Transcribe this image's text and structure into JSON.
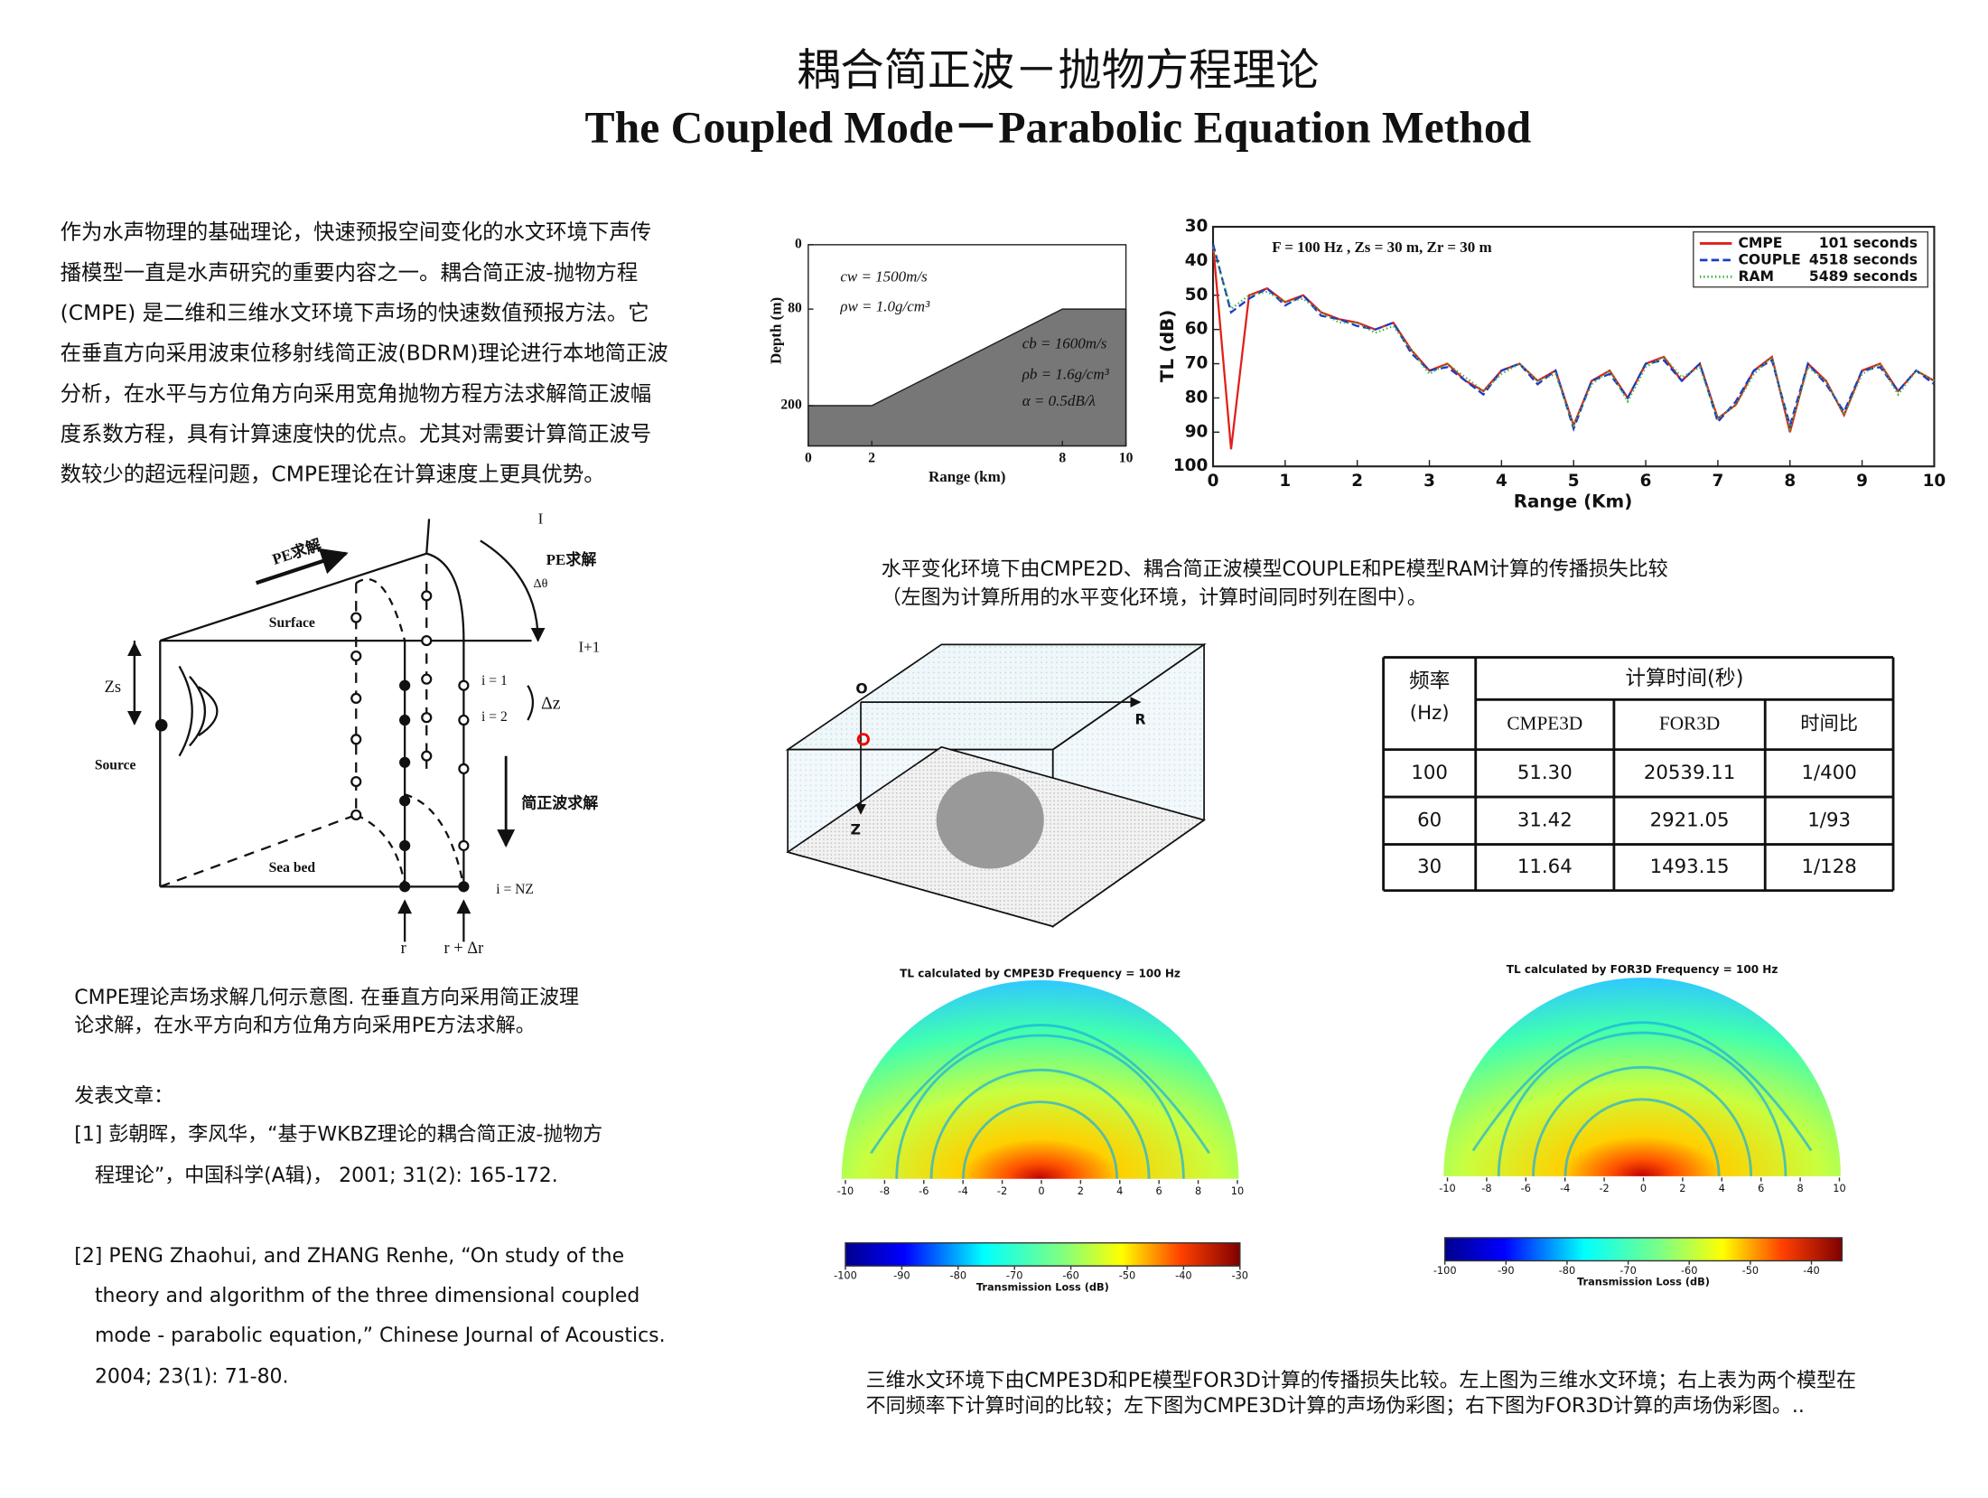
{
  "title": {
    "zh": "耦合简正波－抛物方程理论",
    "en": "The Coupled Mode－Parabolic Equation Method"
  },
  "intro": [
    "作为水声物理的基础理论，快速预报空间变化的水文环境下声传",
    "播模型一直是水声研究的重要内容之一。耦合简正波-抛物方程",
    "(CMPE)  是二维和三维水文环境下声场的快速数值预报方法。它",
    "在垂直方向采用波束位移射线简正波(BDRM)理论进行本地简正波",
    "分析，在水平与方位角方向采用宽角抛物方程方法求解简正波幅",
    "度系数方程，具有计算速度快的优点。尤其对需要计算简正波号",
    "数较少的超远程问题，CMPE理论在计算速度上更具优势。"
  ],
  "diagram": {
    "pe_left": "PE求解",
    "pe_right": "PE求解",
    "surface": "Surface",
    "zs": "Zs",
    "source": "Source",
    "seabed": "Sea bed",
    "i1": "i = 1",
    "i2": "i = 2",
    "dz": "Δz",
    "modes": "简正波求解",
    "inz": "i = NZ",
    "r": "r",
    "rdr": "r + Δr",
    "I": "I",
    "I1": "I+1",
    "dtheta": "Δθ"
  },
  "diagram_caption": [
    "CMPE理论声场求解几何示意图. 在垂直方向采用简正波理",
    "论求解，在水平方向和方位角方向采用PE方法求解。"
  ],
  "publications": {
    "heading": "发表文章：",
    "items": [
      [
        "[1] 彭朝晖，李风华，“基于WKBZ理论的耦合简正波-抛物方",
        "程理论”，中国科学(A辑)， 2001; 31(2): 165-172."
      ],
      [
        "[2] PENG Zhaohui, and ZHANG Renhe, “On study of the",
        "theory and algorithm of the three dimensional  coupled",
        "mode - parabolic equation,” Chinese Journal of Acoustics.",
        "2004; 23(1): 71-80."
      ]
    ]
  },
  "env_figure": {
    "xlabel": "Range (km)",
    "ylabel": "Depth (m)",
    "xlim": [
      0,
      10
    ],
    "ylim": [
      0,
      250
    ],
    "xticks": [
      0,
      2,
      8,
      10
    ],
    "yticks": [
      0,
      80,
      200
    ],
    "seabed": {
      "range": [
        0,
        2,
        8,
        10
      ],
      "depth": [
        200,
        200,
        80,
        80
      ]
    },
    "labels": [
      "cw = 1500m/s",
      "ρw = 1.0g/cm³",
      "cb = 1600m/s",
      "ρb = 1.6g/cm³",
      "α = 0.5dB/λ"
    ]
  },
  "chart_data": {
    "type": "line",
    "xlabel": "Range (Km)",
    "ylabel": "TL (dB)",
    "annotation": "F = 100 Hz , Zs = 30 m, Zr = 30 m",
    "xlim": [
      0,
      10
    ],
    "ylim": [
      100,
      30
    ],
    "xticks": [
      0,
      1,
      2,
      3,
      4,
      5,
      6,
      7,
      8,
      9,
      10
    ],
    "yticks": [
      30,
      40,
      50,
      60,
      70,
      80,
      90,
      100
    ],
    "legend": "upper right",
    "x": [
      0,
      0.25,
      0.5,
      0.75,
      1,
      1.25,
      1.5,
      1.75,
      2,
      2.25,
      2.5,
      2.75,
      3,
      3.25,
      3.5,
      3.75,
      4,
      4.25,
      4.5,
      4.75,
      5,
      5.25,
      5.5,
      5.75,
      6,
      6.25,
      6.5,
      6.75,
      7,
      7.25,
      7.5,
      7.75,
      8,
      8.25,
      8.5,
      8.75,
      9,
      9.25,
      9.5,
      9.75,
      10
    ],
    "series": [
      {
        "name": "CMPE",
        "time_label": "101 seconds",
        "color": "#e0201a",
        "dash": "none",
        "values": [
          35,
          95,
          50,
          48,
          52,
          50,
          55,
          57,
          58,
          60,
          58,
          66,
          72,
          70,
          75,
          78,
          72,
          70,
          75,
          72,
          88,
          75,
          72,
          80,
          70,
          68,
          75,
          70,
          86,
          82,
          72,
          68,
          90,
          70,
          75,
          85,
          72,
          70,
          78,
          72,
          75
        ]
      },
      {
        "name": "COUPLE",
        "time_label": "4518 seconds",
        "color": "#1a3cc8",
        "dash": "6 3",
        "values": [
          35,
          55,
          51,
          48,
          53,
          50,
          56,
          57,
          59,
          60,
          58,
          67,
          72,
          71,
          75,
          79,
          72,
          70,
          76,
          72,
          89,
          75,
          73,
          80,
          70,
          69,
          75,
          70,
          87,
          81,
          72,
          69,
          88,
          70,
          76,
          84,
          72,
          71,
          78,
          72,
          76
        ]
      },
      {
        "name": "RAM",
        "time_label": "5489 seconds",
        "color": "#3cb43c",
        "dash": "1 2",
        "values": [
          36,
          54,
          50,
          49,
          52,
          51,
          55,
          58,
          58,
          61,
          59,
          66,
          73,
          70,
          74,
          78,
          73,
          70,
          75,
          73,
          88,
          76,
          72,
          81,
          71,
          68,
          74,
          71,
          86,
          82,
          73,
          68,
          89,
          71,
          75,
          85,
          73,
          70,
          79,
          72,
          75
        ]
      }
    ]
  },
  "tl_caption": [
    "水平变化环境下由CMPE2D、耦合简正波模型COUPLE和PE模型RAM计算的传播损失比较",
    "（左图为计算所用的水平变化环境，计算时间同时列在图中）。"
  ],
  "box3d": {
    "o": "O",
    "r": "R",
    "z": "Z"
  },
  "table": {
    "header": {
      "freq": "频率",
      "freq_unit": "(Hz)",
      "time": "计算时间(秒)",
      "columns": [
        "CMPE3D",
        "FOR3D",
        "时间比"
      ]
    },
    "rows": [
      [
        "100",
        "51.30",
        "20539.11",
        "1/400"
      ],
      [
        "60",
        "31.42",
        "2921.05",
        "1/93"
      ],
      [
        "30",
        "11.64",
        "1493.15",
        "1/128"
      ]
    ]
  },
  "heatmaps": [
    {
      "title": "TL calculated by CMPE3D    Frequency = 100 Hz",
      "xlim": [
        -10,
        10
      ],
      "xticks": [
        -10,
        -8,
        -6,
        -4,
        -2,
        0,
        2,
        4,
        6,
        8,
        10
      ],
      "clim": [
        -100,
        -30
      ],
      "cticks": [
        -100,
        -90,
        -80,
        -70,
        -60,
        -50,
        -40,
        -30
      ],
      "clabel": "Transmission Loss (dB)"
    },
    {
      "title": "TL calculated by FOR3D    Frequency = 100 Hz",
      "xlim": [
        -10,
        10
      ],
      "xticks": [
        -10,
        -8,
        -6,
        -4,
        -2,
        0,
        2,
        4,
        6,
        8,
        10
      ],
      "clim": [
        -100,
        -35
      ],
      "cticks": [
        -100,
        -90,
        -80,
        -70,
        -60,
        -50,
        -40
      ],
      "clabel": "Transmission Loss (dB)"
    }
  ],
  "bottom_caption": [
    "三维水文环境下由CMPE3D和PE模型FOR3D计算的传播损失比较。左上图为三维水文环境；右上表为两个模型在",
    "不同频率下计算时间的比较；左下图为CMPE3D计算的声场伪彩图；右下图为FOR3D计算的声场伪彩图。.."
  ]
}
